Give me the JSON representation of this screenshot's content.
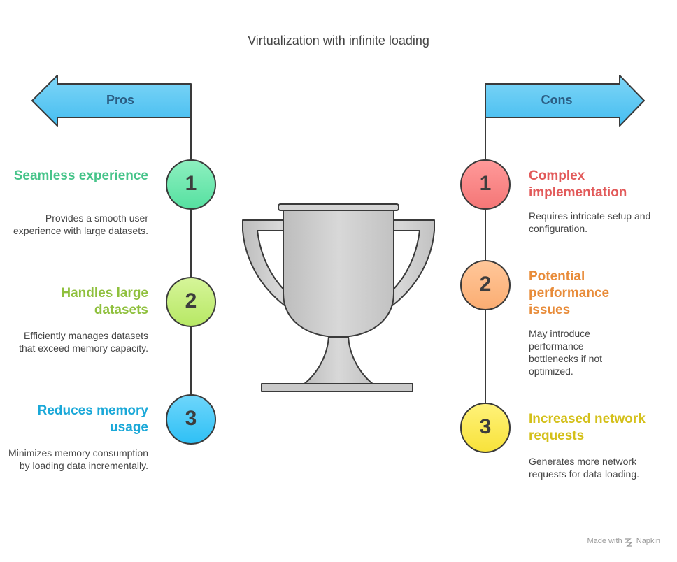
{
  "title": "Virtualization with infinite loading",
  "pros": {
    "label": "Pros",
    "items": [
      {
        "number": "1",
        "heading": "Seamless experience",
        "description": "Provides a smooth user experience with large datasets."
      },
      {
        "number": "2",
        "heading": "Handles large datasets",
        "description": "Efficiently manages datasets that exceed memory capacity."
      },
      {
        "number": "3",
        "heading": "Reduces memory usage",
        "description": "Minimizes memory consumption by loading data incrementally."
      }
    ]
  },
  "cons": {
    "label": "Cons",
    "items": [
      {
        "number": "1",
        "heading": "Complex implementation",
        "description": "Requires intricate setup and configuration."
      },
      {
        "number": "2",
        "heading": "Potential performance issues",
        "description": "May introduce performance bottlenecks if not optimized."
      },
      {
        "number": "3",
        "heading": "Increased network requests",
        "description": "Generates more network requests for data loading."
      }
    ]
  },
  "footer": {
    "made_with": "Made with",
    "brand": "Napkin"
  },
  "colors": {
    "arrow": "#5cc8f2",
    "pro1": "#47c48a",
    "pro2": "#8fc03d",
    "pro3": "#1aa8d8",
    "con1": "#e25a5a",
    "con2": "#e88c3a",
    "con3": "#d4c01a",
    "trophy": "#cfcfcf"
  },
  "icons": [
    "left-arrow-icon",
    "right-arrow-icon",
    "trophy-icon",
    "napkin-icon"
  ]
}
